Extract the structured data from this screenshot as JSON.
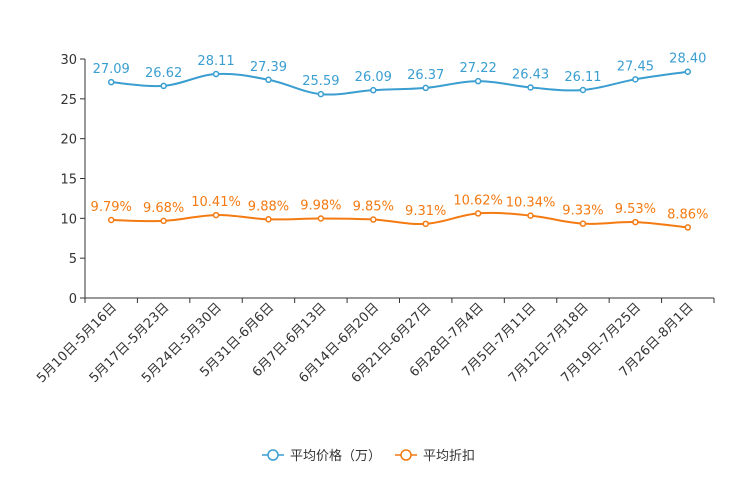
{
  "chart_data": {
    "type": "line",
    "title": "",
    "xlabel": "",
    "ylabel": "",
    "ylim": [
      0,
      30
    ],
    "yticks": [
      0,
      5,
      10,
      15,
      20,
      25,
      30
    ],
    "categories": [
      "5月10日-5月16日",
      "5月17日-5月23日",
      "5月24日-5月30日",
      "5月31日-6月6日",
      "6月7日-6月13日",
      "6月14日-6月20日",
      "6月21日-6月27日",
      "6月28日-7月4日",
      "7月5日-7月11日",
      "7月12日-7月18日",
      "7月19日-7月25日",
      "7月26日-8月1日"
    ],
    "series": [
      {
        "name": "平均价格（万）",
        "color": "#3a9ed1",
        "values": [
          27.09,
          26.62,
          28.11,
          27.39,
          25.59,
          26.09,
          26.37,
          27.22,
          26.43,
          26.11,
          27.45,
          28.4
        ],
        "labels": [
          "27.09",
          "26.62",
          "28.11",
          "27.39",
          "25.59",
          "26.09",
          "26.37",
          "27.22",
          "26.43",
          "26.11",
          "27.45",
          "28.40"
        ]
      },
      {
        "name": "平均折扣",
        "color": "#f47a12",
        "values": [
          9.79,
          9.68,
          10.41,
          9.88,
          9.98,
          9.85,
          9.31,
          10.62,
          10.34,
          9.33,
          9.53,
          8.86
        ],
        "labels": [
          "9.79%",
          "9.68%",
          "10.41%",
          "9.88%",
          "9.98%",
          "9.85%",
          "9.31%",
          "10.62%",
          "10.34%",
          "9.33%",
          "9.53%",
          "8.86%"
        ]
      }
    ],
    "legend_position": "bottom-center",
    "grid": false
  }
}
